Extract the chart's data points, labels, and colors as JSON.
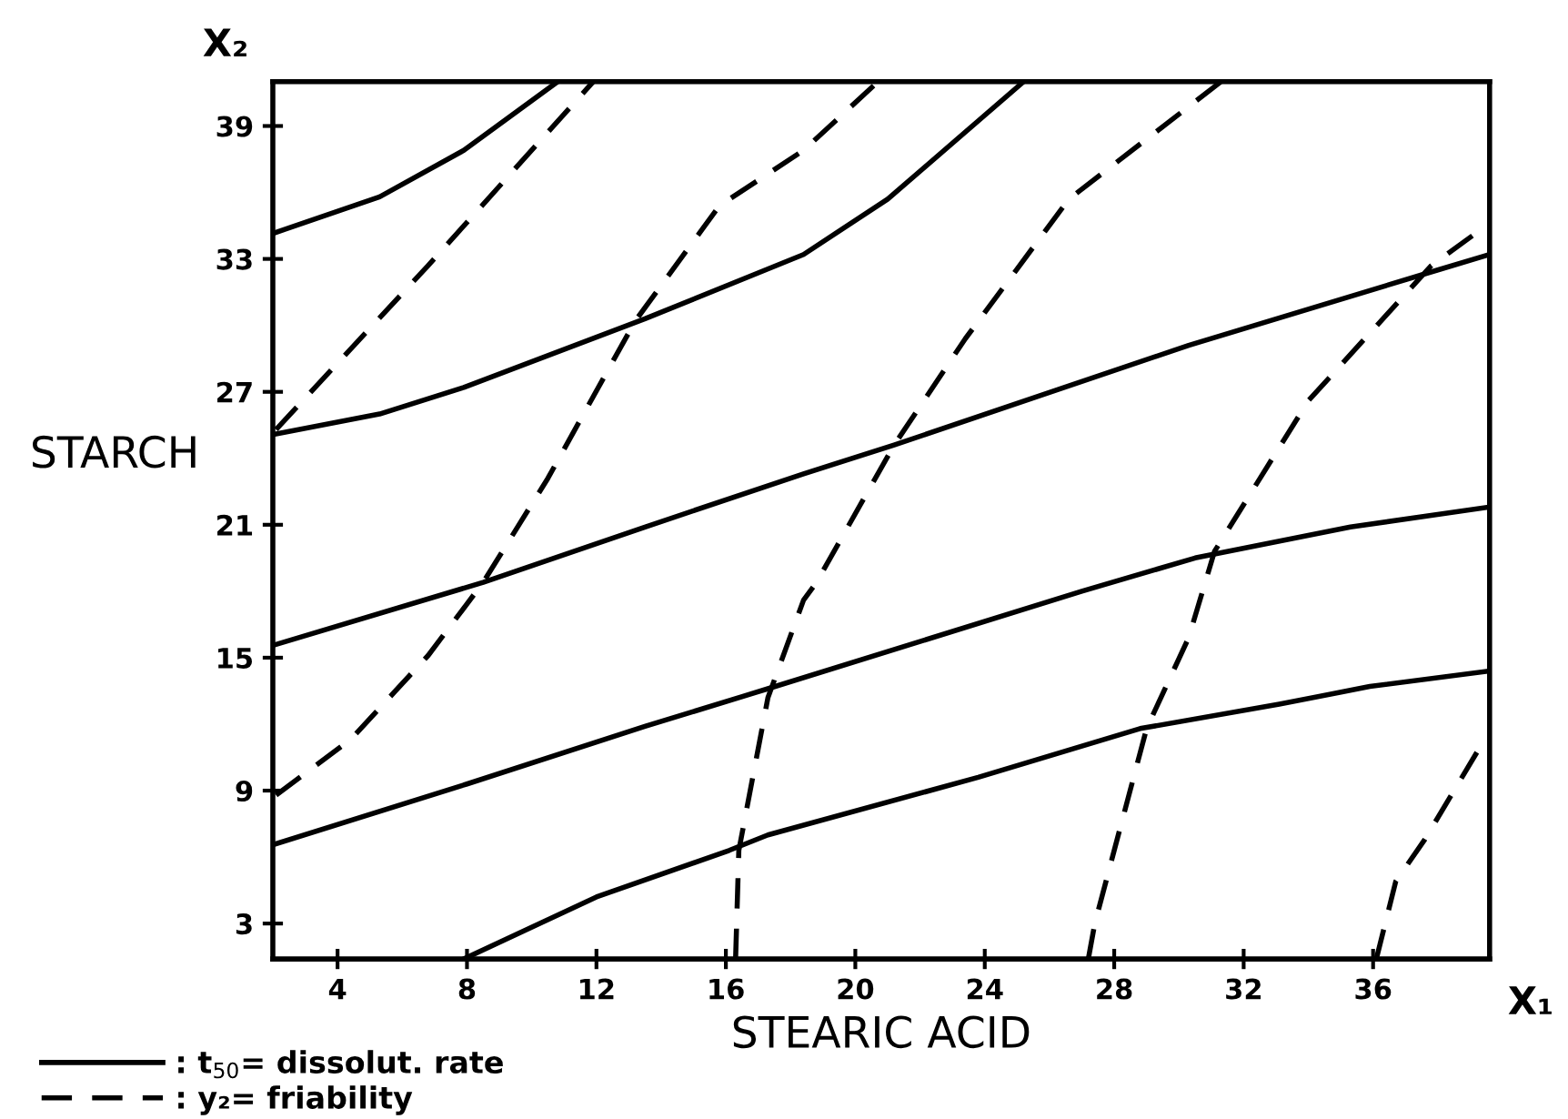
{
  "chart_data": {
    "type": "line",
    "xlabel": "STEARIC ACID",
    "ylabel": "STARCH",
    "annotations": [
      "X₁",
      "X₂"
    ],
    "xlim": [
      2,
      39.6
    ],
    "ylim": [
      1.4,
      41
    ],
    "xticks": [
      4,
      8,
      12,
      16,
      20,
      24,
      28,
      32,
      36
    ],
    "yticks": [
      3,
      9,
      15,
      21,
      27,
      33,
      39
    ],
    "grid": false,
    "legend": "bottom left",
    "marker": "none",
    "series": [
      {
        "name": ": t$_{50}$= dissolut. rate",
        "color": "#000000",
        "line_style": "solid",
        "x": [
          2.1,
          5.3,
          7.9,
          10.8
        ],
        "values": [
          34.2,
          35.8,
          37.9,
          41
        ]
      },
      {
        "color": "#000000",
        "line_style": "solid",
        "x": [
          2.1,
          5.3,
          7.9,
          13.5,
          18.4,
          21.0,
          25.2
        ],
        "values": [
          25.1,
          26.0,
          27.2,
          30.3,
          33.2,
          35.7,
          41
        ]
      },
      {
        "color": "#000000",
        "line_style": "solid",
        "x": [
          2.1,
          8.5,
          13.5,
          18.4,
          21.2,
          30.3,
          38.0,
          39.6
        ],
        "values": [
          15.6,
          18.4,
          20.9,
          23.3,
          24.6,
          29.1,
          32.5,
          33.2
        ]
      },
      {
        "color": "#000000",
        "line_style": "solid",
        "x": [
          2.1,
          8.0,
          13.5,
          17.3,
          27.0,
          30.5,
          35.3,
          39.6
        ],
        "values": [
          6.6,
          9.3,
          11.9,
          13.6,
          18.0,
          19.5,
          20.9,
          21.8
        ]
      },
      {
        "color": "#000000",
        "line_style": "solid",
        "x": [
          7.9,
          12.0,
          16.1,
          17.3,
          23.8,
          28.8,
          33.1,
          35.9,
          39.6
        ],
        "values": [
          1.4,
          4.2,
          6.3,
          7.0,
          9.6,
          11.8,
          12.9,
          13.7,
          14.4
        ]
      },
      {
        "name": ": y₂= friability",
        "color": "#000000",
        "line_style": "dashed",
        "x": [
          2.1,
          6.8,
          11.9
        ],
        "values": [
          25.3,
          32.7,
          41
        ]
      },
      {
        "color": "#000000",
        "line_style": "dashed",
        "x": [
          2.1,
          4.4,
          6.8,
          8.5,
          10.5,
          13.2,
          15.8,
          18.4,
          20.7
        ],
        "values": [
          8.8,
          11.3,
          15.1,
          18.4,
          23.1,
          30.2,
          35.4,
          37.9,
          41
        ]
      },
      {
        "color": "#000000",
        "line_style": "dashed",
        "x": [
          16.3,
          16.4,
          17.3,
          18.4,
          18.8,
          21.2,
          23.4,
          26.6,
          31.3
        ],
        "values": [
          1.4,
          6.3,
          13.2,
          17.6,
          18.4,
          24.6,
          29.4,
          35.7,
          41
        ]
      },
      {
        "color": "#000000",
        "line_style": "dashed",
        "x": [
          27.2,
          27.4,
          28.0,
          29.0,
          30.3,
          31.1,
          34.0,
          37.8,
          39.4
        ],
        "values": [
          1.4,
          3.0,
          6.3,
          11.8,
          15.9,
          19.8,
          26.6,
          32.7,
          34.4
        ]
      },
      {
        "color": "#000000",
        "line_style": "dashed",
        "x": [
          36.1,
          36.7,
          37.6,
          39.4
        ],
        "values": [
          1.4,
          4.9,
          6.8,
          11.2
        ]
      }
    ]
  }
}
